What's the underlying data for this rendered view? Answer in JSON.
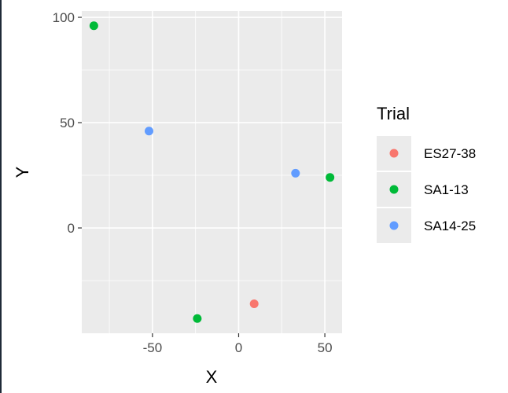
{
  "chart_data": {
    "type": "scatter",
    "title": "",
    "xlabel": "X",
    "ylabel": "Y",
    "xlim": [
      -91,
      60
    ],
    "ylim": [
      -50,
      103
    ],
    "x_ticks": [
      -50,
      0,
      50
    ],
    "x_tick_labels": [
      "-50",
      "0",
      "50"
    ],
    "y_ticks": [
      0,
      50,
      100
    ],
    "y_tick_labels": [
      "0",
      "50",
      "100"
    ],
    "grid": true,
    "legend": {
      "title": "Trial",
      "placement": "right",
      "entries": [
        {
          "label": "ES27-38",
          "color": "#F8766D"
        },
        {
          "label": "SA1-13",
          "color": "#00BA38"
        },
        {
          "label": "SA14-25",
          "color": "#619CFF"
        }
      ]
    },
    "series": [
      {
        "name": "ES27-38",
        "color": "#F8766D",
        "points": [
          {
            "x": 9,
            "y": -36
          }
        ]
      },
      {
        "name": "SA1-13",
        "color": "#00BA38",
        "points": [
          {
            "x": -84,
            "y": 96
          },
          {
            "x": 53,
            "y": 24
          },
          {
            "x": -24,
            "y": -43
          }
        ]
      },
      {
        "name": "SA14-25",
        "color": "#619CFF",
        "points": [
          {
            "x": -52,
            "y": 46
          },
          {
            "x": 33,
            "y": 26
          }
        ]
      }
    ]
  }
}
